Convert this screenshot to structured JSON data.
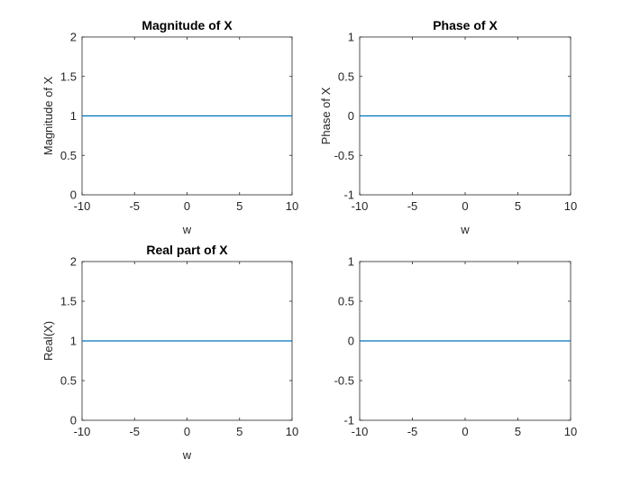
{
  "figure": {
    "background": "#ffffff",
    "line_color": "#0072bd",
    "axis_color": "#262626"
  },
  "chart_data": [
    {
      "type": "line",
      "title": "Magnitude of X",
      "xlabel": "w",
      "ylabel": "Magnitude of X",
      "xlim": [
        -10,
        10
      ],
      "ylim": [
        0,
        2
      ],
      "xticks": [
        -10,
        -5,
        0,
        5,
        10
      ],
      "xtick_labels": [
        "-10",
        "-5",
        "0",
        "5",
        "10"
      ],
      "yticks": [
        0,
        0.5,
        1,
        1.5,
        2
      ],
      "ytick_labels": [
        "0",
        "0.5",
        "1",
        "1.5",
        "2"
      ],
      "grid": false,
      "series": [
        {
          "x": [
            -10,
            10
          ],
          "y": [
            1,
            1
          ],
          "color": "#0072bd"
        }
      ]
    },
    {
      "type": "line",
      "title": "Phase of X",
      "xlabel": "w",
      "ylabel": "Phase of X",
      "xlim": [
        -10,
        10
      ],
      "ylim": [
        -1,
        1
      ],
      "xticks": [
        -10,
        -5,
        0,
        5,
        10
      ],
      "xtick_labels": [
        "-10",
        "-5",
        "0",
        "5",
        "10"
      ],
      "yticks": [
        -1,
        -0.5,
        0,
        0.5,
        1
      ],
      "ytick_labels": [
        "-1",
        "-0.5",
        "0",
        "0.5",
        "1"
      ],
      "grid": false,
      "series": [
        {
          "x": [
            -10,
            10
          ],
          "y": [
            0,
            0
          ],
          "color": "#0072bd"
        }
      ]
    },
    {
      "type": "line",
      "title": "Real part of X",
      "xlabel": "w",
      "ylabel": "Real(X)",
      "xlim": [
        -10,
        10
      ],
      "ylim": [
        0,
        2
      ],
      "xticks": [
        -10,
        -5,
        0,
        5,
        10
      ],
      "xtick_labels": [
        "-10",
        "-5",
        "0",
        "5",
        "10"
      ],
      "yticks": [
        0,
        0.5,
        1,
        1.5,
        2
      ],
      "ytick_labels": [
        "0",
        "0.5",
        "1",
        "1.5",
        "2"
      ],
      "grid": false,
      "series": [
        {
          "x": [
            -10,
            10
          ],
          "y": [
            1,
            1
          ],
          "color": "#0072bd"
        }
      ]
    },
    {
      "type": "line",
      "title": "",
      "xlabel": "",
      "ylabel": "",
      "xlim": [
        -10,
        10
      ],
      "ylim": [
        -1,
        1
      ],
      "xticks": [
        -10,
        -5,
        0,
        5,
        10
      ],
      "xtick_labels": [
        "-10",
        "-5",
        "0",
        "5",
        "10"
      ],
      "yticks": [
        -1,
        -0.5,
        0,
        0.5,
        1
      ],
      "ytick_labels": [
        "-1",
        "-0.5",
        "0",
        "0.5",
        "1"
      ],
      "grid": false,
      "series": [
        {
          "x": [
            -10,
            10
          ],
          "y": [
            0,
            0
          ],
          "color": "#0072bd"
        }
      ]
    }
  ]
}
